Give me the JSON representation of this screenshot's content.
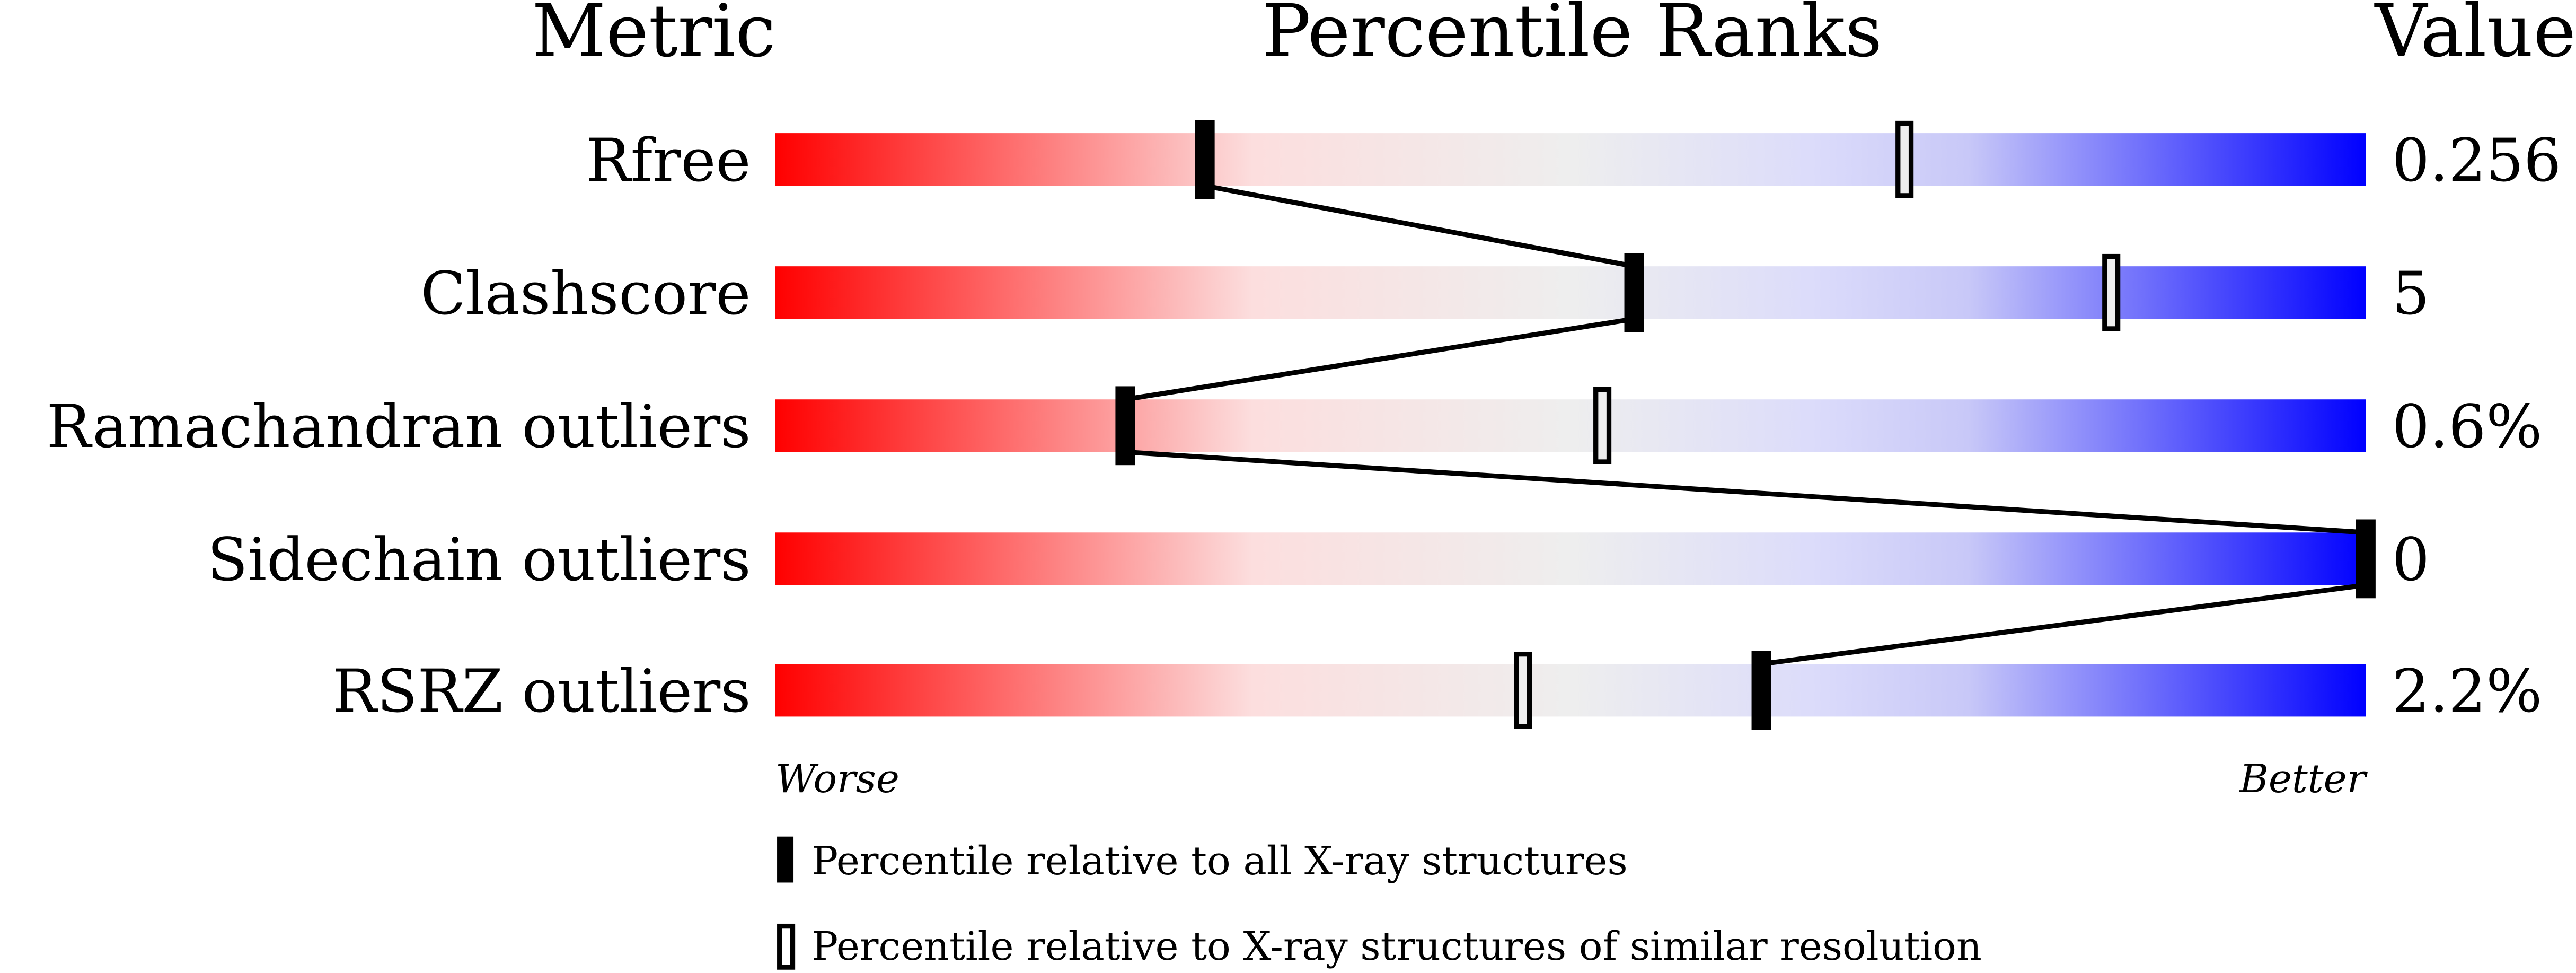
{
  "chart_data": {
    "type": "percentile-bar",
    "headers": {
      "metric": "Metric",
      "ranks": "Percentile Ranks",
      "value": "Value"
    },
    "xlim": [
      0,
      100
    ],
    "axis_labels": {
      "left": "Worse",
      "right": "Better"
    },
    "colors": {
      "worse": "#ff0000",
      "middle": "#eeeeee",
      "better": "#0000ff",
      "marker": "#000000"
    },
    "metrics": [
      {
        "name": "Rfree",
        "value": "0.256",
        "percentile_all": 27,
        "percentile_similar": 71
      },
      {
        "name": "Clashscore",
        "value": "5",
        "percentile_all": 54,
        "percentile_similar": 84
      },
      {
        "name": "Ramachandran outliers",
        "value": "0.6%",
        "percentile_all": 22,
        "percentile_similar": 52
      },
      {
        "name": "Sidechain outliers",
        "value": "0",
        "percentile_all": 100,
        "percentile_similar": 100
      },
      {
        "name": "RSRZ outliers",
        "value": "2.2%",
        "percentile_all": 62,
        "percentile_similar": 47
      }
    ],
    "legend": {
      "all": "Percentile relative to all X-ray structures",
      "similar": "Percentile relative to X-ray structures of similar resolution"
    }
  }
}
